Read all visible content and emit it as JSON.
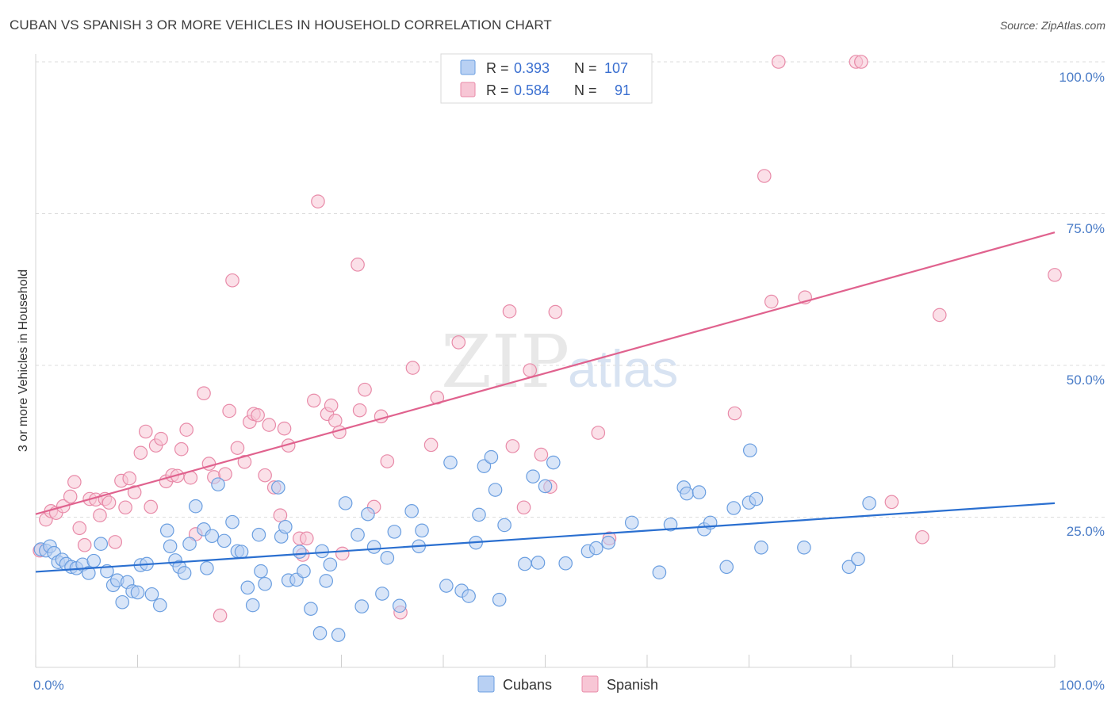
{
  "header": {
    "title": "CUBAN VS SPANISH 3 OR MORE VEHICLES IN HOUSEHOLD CORRELATION CHART",
    "source": "Source: ZipAtlas.com"
  },
  "watermark": {
    "zip": "ZIP",
    "atlas": "atlas"
  },
  "colors": {
    "cubans_fill": "#b8d0f3",
    "cubans_stroke": "#6a9ee0",
    "cubans_line": "#2a6fd0",
    "spanish_fill": "#f7c6d5",
    "spanish_stroke": "#e88aa8",
    "spanish_line": "#e0628e",
    "tick_text": "#4a7cc7",
    "grid": "#dddddd"
  },
  "legend": {
    "rows": [
      {
        "r_label": "R = ",
        "r_value": "0.393",
        "n_label": "N = ",
        "n_value": "107"
      },
      {
        "r_label": "R = ",
        "r_value": "0.584",
        "n_label": "N = ",
        "n_value": "91"
      }
    ]
  },
  "bottom_legend": {
    "cubans": "Cubans",
    "spanish": "Spanish"
  },
  "chart_data": {
    "type": "scatter",
    "title": "CUBAN VS SPANISH 3 OR MORE VEHICLES IN HOUSEHOLD CORRELATION CHART",
    "xlabel": "",
    "ylabel": "3 or more Vehicles in Household",
    "xlim": [
      0,
      100
    ],
    "ylim": [
      0,
      100
    ],
    "x_tick_labels": [
      "0.0%",
      "100.0%"
    ],
    "y_tick_labels": [
      "25.0%",
      "50.0%",
      "75.0%",
      "100.0%"
    ],
    "y_ticks": [
      25,
      50,
      75,
      100
    ],
    "grid": true,
    "legend_position": "top-center",
    "series": [
      {
        "name": "Cubans",
        "r": 0.393,
        "n": 107,
        "trend": {
          "x": [
            0,
            100
          ],
          "y": [
            16.0,
            27.3
          ]
        },
        "points": [
          [
            0.5,
            19.7
          ],
          [
            1.0,
            19.5
          ],
          [
            1.4,
            20.2
          ],
          [
            1.8,
            19.1
          ],
          [
            2.2,
            17.6
          ],
          [
            2.6,
            18.0
          ],
          [
            3.0,
            17.3
          ],
          [
            3.5,
            16.8
          ],
          [
            4.0,
            16.6
          ],
          [
            4.6,
            17.2
          ],
          [
            5.2,
            15.8
          ],
          [
            5.7,
            17.8
          ],
          [
            6.4,
            20.6
          ],
          [
            7.0,
            16.1
          ],
          [
            7.6,
            13.8
          ],
          [
            8.0,
            14.6
          ],
          [
            8.5,
            11.0
          ],
          [
            9.0,
            14.3
          ],
          [
            9.5,
            12.8
          ],
          [
            10.0,
            12.6
          ],
          [
            10.3,
            17.1
          ],
          [
            10.9,
            17.3
          ],
          [
            11.4,
            12.3
          ],
          [
            12.2,
            10.5
          ],
          [
            12.9,
            22.8
          ],
          [
            13.2,
            20.2
          ],
          [
            13.7,
            17.9
          ],
          [
            14.1,
            16.8
          ],
          [
            14.6,
            15.8
          ],
          [
            15.1,
            20.6
          ],
          [
            15.7,
            26.8
          ],
          [
            16.5,
            23.0
          ],
          [
            16.8,
            16.6
          ],
          [
            17.3,
            21.9
          ],
          [
            17.9,
            30.4
          ],
          [
            18.5,
            21.1
          ],
          [
            19.3,
            24.2
          ],
          [
            19.8,
            19.4
          ],
          [
            20.2,
            19.3
          ],
          [
            20.8,
            13.4
          ],
          [
            21.3,
            10.5
          ],
          [
            21.9,
            22.1
          ],
          [
            22.1,
            16.1
          ],
          [
            22.5,
            14.0
          ],
          [
            23.8,
            29.9
          ],
          [
            24.1,
            21.8
          ],
          [
            24.5,
            23.4
          ],
          [
            24.8,
            14.6
          ],
          [
            25.6,
            14.7
          ],
          [
            25.9,
            19.3
          ],
          [
            26.3,
            16.1
          ],
          [
            27.0,
            9.9
          ],
          [
            27.9,
            5.9
          ],
          [
            28.1,
            19.4
          ],
          [
            28.5,
            14.5
          ],
          [
            28.9,
            17.2
          ],
          [
            29.7,
            5.6
          ],
          [
            30.4,
            27.3
          ],
          [
            31.6,
            22.1
          ],
          [
            32.0,
            10.3
          ],
          [
            32.6,
            25.5
          ],
          [
            33.2,
            20.1
          ],
          [
            34.0,
            12.4
          ],
          [
            34.5,
            18.3
          ],
          [
            35.2,
            22.6
          ],
          [
            35.7,
            10.4
          ],
          [
            36.9,
            26.0
          ],
          [
            37.6,
            20.2
          ],
          [
            37.9,
            22.8
          ],
          [
            40.3,
            13.7
          ],
          [
            40.7,
            34.0
          ],
          [
            41.8,
            12.9
          ],
          [
            42.5,
            12.0
          ],
          [
            43.2,
            20.8
          ],
          [
            43.5,
            25.4
          ],
          [
            44.0,
            33.4
          ],
          [
            44.7,
            34.9
          ],
          [
            45.1,
            29.5
          ],
          [
            45.5,
            11.4
          ],
          [
            46.0,
            23.7
          ],
          [
            48.0,
            17.3
          ],
          [
            48.8,
            31.7
          ],
          [
            49.3,
            17.5
          ],
          [
            50.0,
            30.1
          ],
          [
            50.8,
            34.0
          ],
          [
            52.0,
            17.4
          ],
          [
            54.2,
            19.4
          ],
          [
            55.0,
            19.9
          ],
          [
            56.2,
            20.8
          ],
          [
            58.5,
            24.1
          ],
          [
            61.2,
            15.9
          ],
          [
            62.3,
            23.8
          ],
          [
            63.6,
            29.9
          ],
          [
            63.9,
            28.9
          ],
          [
            65.1,
            29.1
          ],
          [
            65.6,
            23.0
          ],
          [
            66.2,
            24.1
          ],
          [
            67.8,
            16.8
          ],
          [
            68.5,
            26.5
          ],
          [
            70.0,
            27.4
          ],
          [
            70.1,
            36.0
          ],
          [
            70.7,
            28.0
          ],
          [
            71.2,
            20.0
          ],
          [
            75.4,
            20.0
          ],
          [
            79.8,
            16.8
          ],
          [
            80.7,
            18.1
          ],
          [
            81.8,
            27.3
          ]
        ]
      },
      {
        "name": "Spanish",
        "r": 0.584,
        "n": 91,
        "trend": {
          "x": [
            0,
            100
          ],
          "y": [
            25.5,
            71.9
          ]
        },
        "points": [
          [
            0.4,
            19.5
          ],
          [
            1.0,
            24.6
          ],
          [
            1.5,
            26.0
          ],
          [
            2.0,
            25.7
          ],
          [
            2.7,
            26.8
          ],
          [
            3.4,
            28.4
          ],
          [
            3.8,
            30.8
          ],
          [
            4.3,
            23.2
          ],
          [
            4.8,
            20.4
          ],
          [
            5.3,
            28.0
          ],
          [
            5.9,
            27.9
          ],
          [
            6.3,
            25.3
          ],
          [
            6.8,
            28.0
          ],
          [
            7.2,
            27.4
          ],
          [
            7.8,
            20.9
          ],
          [
            8.4,
            31.0
          ],
          [
            8.8,
            26.6
          ],
          [
            9.2,
            31.4
          ],
          [
            9.7,
            29.1
          ],
          [
            10.3,
            35.6
          ],
          [
            10.8,
            39.1
          ],
          [
            11.3,
            26.7
          ],
          [
            11.8,
            36.8
          ],
          [
            12.3,
            37.9
          ],
          [
            12.8,
            30.9
          ],
          [
            13.4,
            31.9
          ],
          [
            13.9,
            31.8
          ],
          [
            14.3,
            36.2
          ],
          [
            14.8,
            39.4
          ],
          [
            15.2,
            31.5
          ],
          [
            15.7,
            22.2
          ],
          [
            16.5,
            45.4
          ],
          [
            17.0,
            33.8
          ],
          [
            17.5,
            31.6
          ],
          [
            18.1,
            8.8
          ],
          [
            18.6,
            32.1
          ],
          [
            19.0,
            42.5
          ],
          [
            19.3,
            64.0
          ],
          [
            19.8,
            36.4
          ],
          [
            20.5,
            34.1
          ],
          [
            21.0,
            40.7
          ],
          [
            21.4,
            42.0
          ],
          [
            21.8,
            41.8
          ],
          [
            22.5,
            31.9
          ],
          [
            22.9,
            40.2
          ],
          [
            23.4,
            29.9
          ],
          [
            24.0,
            25.3
          ],
          [
            24.4,
            39.6
          ],
          [
            24.8,
            36.8
          ],
          [
            25.9,
            21.5
          ],
          [
            26.2,
            18.8
          ],
          [
            26.6,
            21.5
          ],
          [
            27.3,
            44.2
          ],
          [
            27.7,
            77.0
          ],
          [
            28.6,
            42.0
          ],
          [
            29.0,
            43.4
          ],
          [
            29.4,
            40.9
          ],
          [
            29.8,
            39.0
          ],
          [
            30.1,
            19.0
          ],
          [
            31.6,
            66.6
          ],
          [
            31.8,
            42.6
          ],
          [
            32.3,
            46.0
          ],
          [
            33.2,
            26.7
          ],
          [
            33.9,
            41.6
          ],
          [
            34.5,
            34.2
          ],
          [
            35.8,
            9.3
          ],
          [
            37.0,
            49.6
          ],
          [
            38.8,
            36.9
          ],
          [
            39.4,
            44.7
          ],
          [
            41.5,
            53.8
          ],
          [
            46.5,
            58.9
          ],
          [
            46.8,
            36.7
          ],
          [
            47.9,
            26.6
          ],
          [
            48.5,
            49.2
          ],
          [
            49.6,
            35.3
          ],
          [
            50.5,
            30.0
          ],
          [
            51.0,
            58.8
          ],
          [
            55.2,
            38.9
          ],
          [
            56.3,
            21.5
          ],
          [
            57.0,
            100.0
          ],
          [
            68.6,
            42.1
          ],
          [
            71.5,
            81.2
          ],
          [
            72.2,
            60.5
          ],
          [
            72.9,
            100.0
          ],
          [
            75.5,
            61.2
          ],
          [
            80.5,
            100.0
          ],
          [
            81.0,
            100.0
          ],
          [
            84.0,
            27.5
          ],
          [
            87.0,
            21.7
          ],
          [
            88.7,
            58.3
          ],
          [
            100.0,
            64.9
          ]
        ]
      }
    ]
  }
}
